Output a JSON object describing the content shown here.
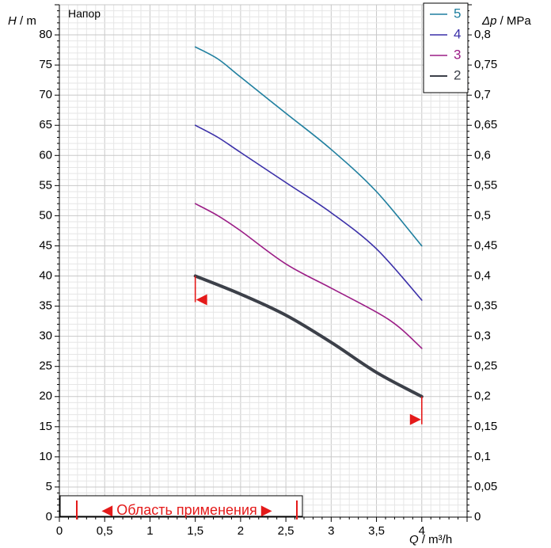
{
  "chart_data": {
    "type": "line",
    "title": "Напор",
    "xlabel_var": "Q",
    "xlabel_unit": " / m³/h",
    "ylabel_var": "H",
    "ylabel_unit": " / m",
    "y2label_var": "Δp",
    "y2label_unit": " / MPa",
    "xlim": [
      0,
      4.5
    ],
    "ylim": [
      0,
      85
    ],
    "y2lim": [
      0,
      0.85
    ],
    "x_ticks": [
      "0",
      "0,5",
      "1",
      "1,5",
      "2",
      "2,5",
      "3",
      "3,5",
      "4"
    ],
    "y_ticks": [
      "0",
      "5",
      "10",
      "15",
      "20",
      "25",
      "30",
      "35",
      "40",
      "45",
      "50",
      "55",
      "60",
      "65",
      "70",
      "75",
      "80"
    ],
    "y2_ticks": [
      "0",
      "0,05",
      "0,1",
      "0,15",
      "0,2",
      "0,25",
      "0,3",
      "0,35",
      "0,4",
      "0,45",
      "0,5",
      "0,55",
      "0,6",
      "0,65",
      "0,7",
      "0,75",
      "0,8"
    ],
    "grid": true,
    "legend_position": "top-right",
    "series": [
      {
        "name": "5",
        "color": "#1f7f9f",
        "x": [
          1.5,
          1.75,
          2.0,
          2.5,
          3.0,
          3.5,
          4.0
        ],
        "y": [
          78,
          76,
          73,
          67,
          61,
          54,
          45
        ]
      },
      {
        "name": "4",
        "color": "#3a2fa8",
        "x": [
          1.5,
          1.75,
          2.0,
          2.5,
          3.0,
          3.5,
          4.0
        ],
        "y": [
          65,
          63,
          60.5,
          55.5,
          50.5,
          44.5,
          36
        ]
      },
      {
        "name": "3",
        "color": "#9b1d86",
        "x": [
          1.5,
          1.75,
          2.0,
          2.5,
          3.0,
          3.5,
          3.75,
          4.0
        ],
        "y": [
          52,
          50,
          47.5,
          42,
          38,
          34,
          31.5,
          28
        ]
      },
      {
        "name": "2",
        "color": "#3c4049",
        "x": [
          1.5,
          2.0,
          2.5,
          3.0,
          3.5,
          4.0
        ],
        "y": [
          40,
          37,
          33.5,
          29,
          24,
          20
        ]
      }
    ],
    "range_label": "◀ Область применения ▶",
    "range_color": "#e41a1a",
    "operating_limits": {
      "min_q": 1.5,
      "max_q": 4.0
    }
  }
}
